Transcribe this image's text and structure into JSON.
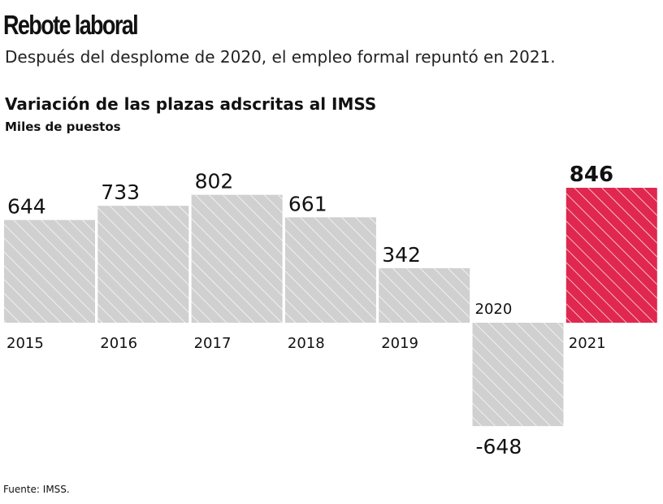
{
  "header": {
    "title": "Rebote laboral",
    "subtitle": "Después del desplome de 2020, el empleo formal repuntó en 2021."
  },
  "footer": {
    "source": "Fuente: IMSS."
  },
  "colors": {
    "bar": "#d0d0d0",
    "highlight": "#e0274f",
    "hatch": "#ffffff"
  },
  "chart_data": {
    "type": "bar",
    "title": "Variación de las plazas adscritas al IMSS",
    "ylabel": "Miles de puestos",
    "categories": [
      "2015",
      "2016",
      "2017",
      "2018",
      "2019",
      "2020",
      "2021"
    ],
    "values": [
      644,
      733,
      802,
      661,
      342,
      -648,
      846
    ],
    "value_labels": [
      "644",
      "733",
      "802",
      "661",
      "342",
      "-648",
      "846"
    ],
    "highlight": "2021",
    "grid": false,
    "pattern": "diagonal-hatch"
  }
}
